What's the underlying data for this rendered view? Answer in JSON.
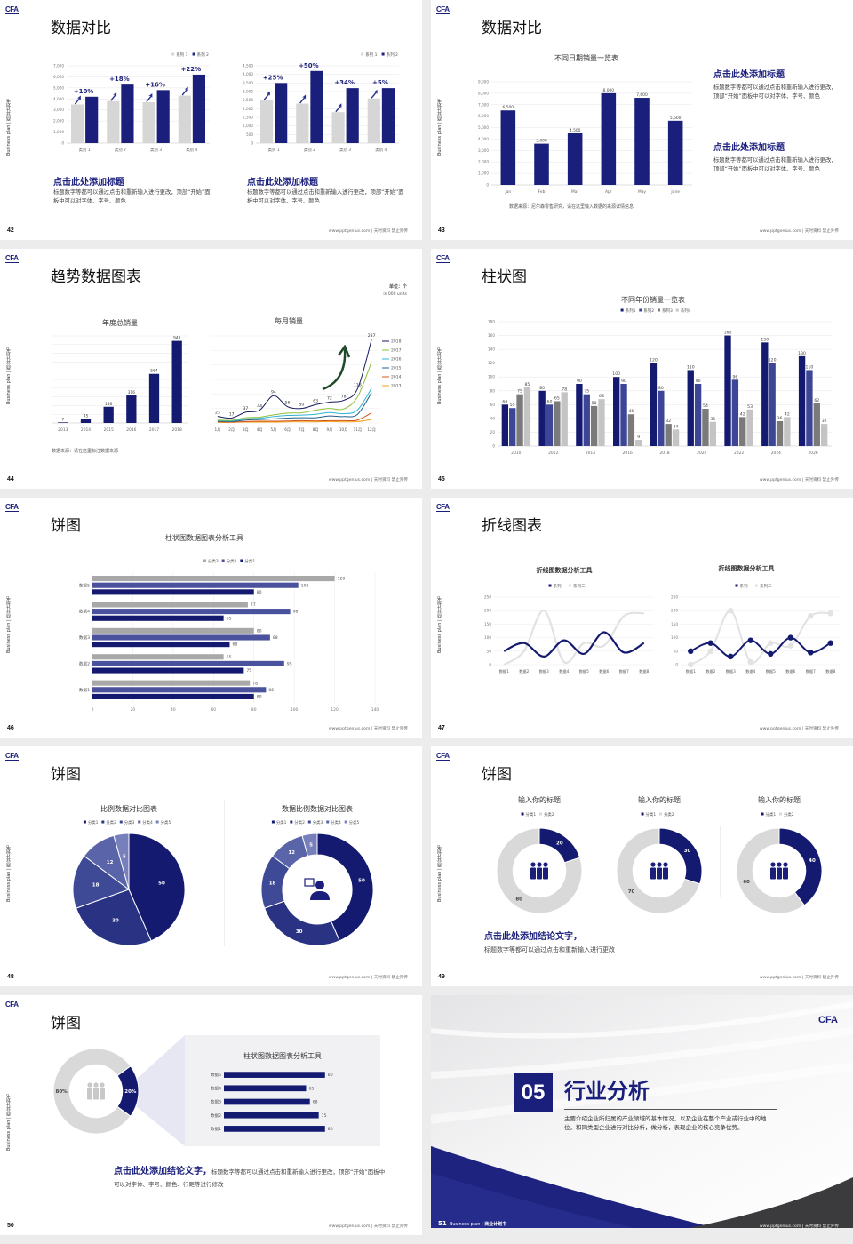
{
  "common": {
    "logo": "CFA",
    "side_label": "Business plan | 商业计划书",
    "footer": "www.pptgenius.com | 天时资料 禁止外传"
  },
  "colors": {
    "navy": "#1b1f7c",
    "mid": "#3c4596",
    "gray": "#8c8c8c",
    "light": "#d0d0d0"
  },
  "slides": [
    {
      "number": "42",
      "title": "数据对比",
      "blocks": [
        {
          "heading": "点击此处添加标题",
          "text": "标题数字等都可以通过点击和重新输入进行更改，顶部“开始”面板中可以对字体、字号、颜色"
        },
        {
          "heading": "点击此处添加标题",
          "text": "标题数字等都可以通过点击和重新输入进行更改，顶部“开始”面板中可以对字体、字号、颜色"
        }
      ]
    },
    {
      "number": "43",
      "title": "数据对比",
      "source": "数据来源：尼尔森零售研究，请在这里输入数据的来源详情信息",
      "blocks": [
        {
          "heading": "点击此处添加标题",
          "text": "标题数字等都可以通过点击和重新输入进行更改，顶部“开始”面板中可以对字体、字号、颜色"
        },
        {
          "heading": "点击此处添加标题",
          "text": "标题数字等都可以通过点击和重新输入进行更改，顶部“开始”面板中可以对字体、字号、颜色"
        }
      ]
    },
    {
      "number": "44",
      "title": "趋势数据图表",
      "unit": "单位：个",
      "unit_sub": "in 000 units",
      "source": "数据来源：请在这里标注数据来源"
    },
    {
      "number": "45",
      "title": "柱状图"
    },
    {
      "number": "46",
      "title": "饼图"
    },
    {
      "number": "47",
      "title": "折线图表"
    },
    {
      "number": "48",
      "title": "饼图"
    },
    {
      "number": "49",
      "title": "饼图",
      "conclusion": "点击此处添加结论文字，",
      "text": "标题数字等都可以通过点击和重新输入进行更改"
    },
    {
      "number": "50",
      "title": "饼图",
      "conclusion": "点击此处添加结论文字，",
      "text": "标题数字等都可以通过点击和重新输入进行更改，顶部“开始”面板中可以对字体、字号、颜色、行距等进行修改"
    },
    {
      "number": "51",
      "section_no": "05",
      "title": "行业分析",
      "text": "主要介绍企业所归属的产业领域的基本情况，以及企业在整个产业或行业中的地位。和同类型企业进行对比分析，做分析，表现企业的核心竞争优势。",
      "bottom_label": "Business plan",
      "bottom_label_bold": "商业计划书"
    }
  ],
  "chart_data": [
    {
      "type": "bar",
      "categories": [
        "类别 1",
        "类别 2",
        "类别 3",
        "类别 4"
      ],
      "series": [
        {
          "name": "系列 1",
          "values": [
            3500,
            3800,
            3700,
            4300
          ],
          "color": "#d6d6d6"
        },
        {
          "name": "系列 2",
          "values": [
            4200,
            5300,
            4800,
            6200
          ],
          "color": "#1b1f7c"
        }
      ],
      "ylim": [
        0,
        7000
      ],
      "ystep": 1000,
      "annotations": [
        "+10%",
        "+18%",
        "+16%",
        "+22%"
      ],
      "legend": "top-right",
      "grid": true
    },
    {
      "type": "bar",
      "categories": [
        "类别 1",
        "类别 2",
        "类别 3",
        "类别 4"
      ],
      "series": [
        {
          "name": "系列 1",
          "values": [
            2500,
            2300,
            1800,
            2600
          ],
          "color": "#d6d6d6"
        },
        {
          "name": "系列 2",
          "values": [
            3500,
            4200,
            3200,
            3200
          ],
          "color": "#1b1f7c"
        }
      ],
      "ylim": [
        0,
        4500
      ],
      "ystep": 500,
      "annotations": [
        "+25%",
        "+50%",
        "+34%",
        "+5%"
      ],
      "legend": "top-right",
      "grid": true
    },
    {
      "type": "bar",
      "title": "不同日期销量一览表",
      "categories": [
        "Jan",
        "Feb",
        "Mar",
        "Apr",
        "May",
        "June"
      ],
      "series": [
        {
          "values": [
            6500,
            3600,
            4500,
            8000,
            7600,
            5600
          ],
          "color": "#1b1f7c"
        }
      ],
      "ylim": [
        0,
        9000
      ],
      "ystep": 1000,
      "show_values": true,
      "grid": true
    },
    {
      "type": "bar",
      "title": "年度总销量",
      "categories": [
        "2013",
        "2014",
        "2015",
        "2016",
        "2017",
        "2018"
      ],
      "series": [
        {
          "values": [
            7,
            45,
            186,
            316,
            564,
            943
          ],
          "color": "#141a70"
        }
      ],
      "ylim": [
        0,
        1000
      ],
      "ystep": 100,
      "show_values": true,
      "grid": true,
      "hide_y_ticks": true
    },
    {
      "type": "line",
      "title": "每月销量",
      "categories": [
        "1月",
        "2月",
        "3月",
        "4月",
        "5月",
        "6月",
        "7月",
        "8月",
        "9月",
        "10月",
        "11月",
        "12月"
      ],
      "series": [
        {
          "name": "2018",
          "values": [
            23,
            17,
            37,
            44,
            94,
            56,
            50,
            63,
            72,
            78,
            118,
            287
          ],
          "color": "#141a5e",
          "show_values": true
        },
        {
          "name": "2017",
          "values": [
            10,
            9,
            18,
            20,
            28,
            34,
            35,
            44,
            50,
            48,
            90,
            210
          ],
          "color": "#8fbf3a"
        },
        {
          "name": "2016",
          "values": [
            8,
            7,
            14,
            16,
            22,
            26,
            27,
            30,
            36,
            32,
            45,
            120
          ],
          "color": "#2cb5d6"
        },
        {
          "name": "2015",
          "values": [
            6,
            5,
            10,
            12,
            14,
            17,
            18,
            18,
            24,
            22,
            30,
            105
          ],
          "color": "#1f5f8a"
        },
        {
          "name": "2014",
          "values": [
            4,
            3,
            5,
            6,
            6,
            7,
            8,
            7,
            8,
            8,
            10,
            35
          ],
          "color": "#d4541a"
        },
        {
          "name": "2013",
          "values": [
            2,
            2,
            3,
            3,
            3,
            4,
            4,
            4,
            5,
            4,
            5,
            12
          ],
          "color": "#f2a31b"
        }
      ],
      "ylim": [
        0,
        300
      ],
      "ystep": 50,
      "smooth": true,
      "grid": true,
      "hide_y_ticks": true,
      "legend": "right"
    },
    {
      "type": "bar",
      "title": "不同年份销量一览表",
      "categories": [
        "2010",
        "2012",
        "2014",
        "2016",
        "2018",
        "2020",
        "2022",
        "2024",
        "2026"
      ],
      "series": [
        {
          "name": "系列1",
          "values": [
            60,
            80,
            90,
            100,
            120,
            110,
            160,
            150,
            130
          ],
          "color": "#141a70"
        },
        {
          "name": "系列2",
          "values": [
            55,
            60,
            75,
            90,
            80,
            90,
            96,
            120,
            110
          ],
          "color": "#3c4596"
        },
        {
          "name": "系列3",
          "values": [
            75,
            65,
            58,
            46,
            32,
            54,
            42,
            36,
            62
          ],
          "color": "#7a7a7a"
        },
        {
          "name": "系列4",
          "values": [
            85,
            78,
            68,
            9,
            24,
            35,
            53,
            42,
            32
          ],
          "color": "#c4c4c4"
        }
      ],
      "ylim": [
        0,
        180
      ],
      "ystep": 20,
      "show_values": true,
      "legend": "top",
      "grid": true
    },
    {
      "type": "hbar",
      "title": "柱状图数据图表分析工具",
      "categories": [
        "数据1",
        "数据2",
        "数据3",
        "数据4",
        "数据5"
      ],
      "series": [
        {
          "name": "分类1",
          "values": [
            80,
            75,
            68,
            65,
            80
          ],
          "color": "#141a70"
        },
        {
          "name": "分类2",
          "values": [
            86,
            95,
            88,
            98,
            102
          ],
          "color": "#4a529e"
        },
        {
          "name": "分类3",
          "values": [
            78,
            65,
            80,
            77,
            120
          ],
          "color": "#a8a8a8"
        }
      ],
      "xlim": [
        0,
        140
      ],
      "xstep": 20,
      "show_values": true,
      "legend": "top",
      "grid": true
    },
    {
      "type": "line",
      "title": "折线图数据分析工具",
      "categories": [
        "数据1",
        "数据2",
        "数据3",
        "数据4",
        "数据5",
        "数据6",
        "数据7",
        "数据8"
      ],
      "series": [
        {
          "name": "系列一",
          "values": [
            50,
            80,
            30,
            90,
            40,
            120,
            45,
            80
          ],
          "color": "#141a70",
          "width": 2.2
        },
        {
          "name": "系列二",
          "values": [
            0,
            50,
            200,
            10,
            80,
            70,
            180,
            190
          ],
          "color": "#e2e2e2",
          "width": 2.2
        }
      ],
      "ylim": [
        0,
        250
      ],
      "ystep": 50,
      "smooth": true,
      "legend": "top",
      "grid": true
    },
    {
      "type": "line",
      "title": "折线图数据分析工具",
      "categories": [
        "数据1",
        "数据2",
        "数据3",
        "数据4",
        "数据5",
        "数据6",
        "数据7",
        "数据8"
      ],
      "series": [
        {
          "name": "系列一",
          "values": [
            50,
            80,
            30,
            90,
            40,
            100,
            45,
            80
          ],
          "color": "#141a70",
          "width": 2,
          "markers": true
        },
        {
          "name": "系列二",
          "values": [
            0,
            50,
            200,
            10,
            80,
            70,
            180,
            190
          ],
          "color": "#e2e2e2",
          "width": 2,
          "markers": true
        }
      ],
      "ylim": [
        0,
        250
      ],
      "ystep": 50,
      "smooth": true,
      "legend": "top",
      "grid": true
    },
    {
      "type": "pie",
      "title": "比例数据对比图表",
      "categories": [
        "分类1",
        "分类2",
        "分类3",
        "分类4",
        "分类5"
      ],
      "values": [
        50,
        30,
        18,
        12,
        5
      ],
      "colors": [
        "#141a70",
        "#2a3283",
        "#3f4a96",
        "#5a64a8",
        "#7880bb"
      ],
      "legend": "top"
    },
    {
      "type": "pie",
      "title": "数据比例数据对比图表",
      "categories": [
        "分类1",
        "分类2",
        "分类3",
        "分类4",
        "分类5"
      ],
      "values": [
        50,
        30,
        18,
        12,
        5
      ],
      "colors": [
        "#141a70",
        "#2a3283",
        "#3f4a96",
        "#5a64a8",
        "#7880bb"
      ],
      "legend": "top",
      "donut": true,
      "center_icon": "user-chat-icon"
    },
    {
      "type": "pie",
      "title": "输入你的标题",
      "categories": [
        "分类1",
        "分类2"
      ],
      "values": [
        20,
        80
      ],
      "colors": [
        "#141a70",
        "#d9d9d9"
      ],
      "legend": "top",
      "donut": true,
      "center_icon": "team-icon"
    },
    {
      "type": "pie",
      "title": "输入你的标题",
      "categories": [
        "分类1",
        "分类2"
      ],
      "values": [
        30,
        70
      ],
      "colors": [
        "#141a70",
        "#d9d9d9"
      ],
      "legend": "top",
      "donut": true,
      "center_icon": "team-icon"
    },
    {
      "type": "pie",
      "title": "输入你的标题",
      "categories": [
        "分类1",
        "分类2"
      ],
      "values": [
        40,
        60
      ],
      "colors": [
        "#141a70",
        "#d9d9d9"
      ],
      "legend": "top",
      "donut": true,
      "center_icon": "team-icon"
    },
    {
      "type": "pie",
      "values": [
        20,
        80
      ],
      "value_suffix": "%",
      "colors": [
        "#141a70",
        "#d9d9d9"
      ],
      "donut": true,
      "center_icon": "people-icon"
    },
    {
      "type": "hbar",
      "title": "柱状图数据图表分析工具",
      "categories": [
        "数据1",
        "数据2",
        "数据3",
        "数据4",
        "数据5"
      ],
      "series": [
        {
          "values": [
            80,
            75,
            68,
            65,
            80
          ],
          "color": "#141a70"
        }
      ],
      "xlim": [
        0,
        90
      ],
      "show_values": true,
      "grid": false
    }
  ]
}
